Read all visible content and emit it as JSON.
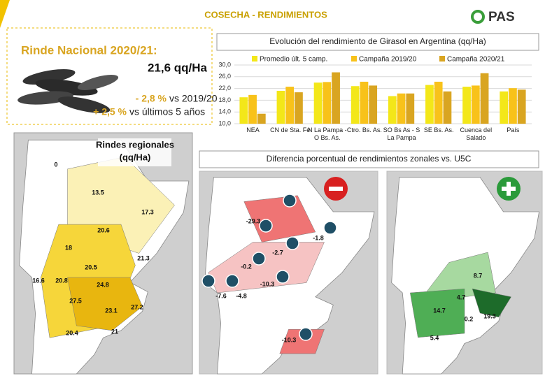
{
  "header": {
    "title": "COSECHA - RENDIMIENTOS",
    "logo": "PAS"
  },
  "national": {
    "title": "Rinde Nacional 2020/21:",
    "value": "21,6 qq/Ha",
    "changes": [
      {
        "change": "- 2,8 %",
        "text": "vs 2019/20"
      },
      {
        "change": "+ 2,5 %",
        "text": "vs últimos 5 años"
      }
    ]
  },
  "chart_data": {
    "type": "bar",
    "title": "Evolución del rendimiento de Girasol en Argentina (qq/Ha)",
    "categories": [
      "NEA",
      "CN de Sta. Fe",
      "N La Pampa - O Bs. As.",
      "Ctro. Bs. As.",
      "SO Bs As - S La Pampa",
      "SE Bs. As.",
      "Cuenca del Salado",
      "País"
    ],
    "series": [
      {
        "name": "Promedio últ. 5 camp.",
        "color": "#f3e719",
        "values": [
          19.0,
          21.2,
          24.0,
          22.8,
          19.4,
          23.2,
          22.6,
          21.0
        ]
      },
      {
        "name": "Campaña 2019/20",
        "color": "#f8c21a",
        "values": [
          19.8,
          22.6,
          24.2,
          24.3,
          20.3,
          24.3,
          23.0,
          22.1
        ]
      },
      {
        "name": "Campaña 2020/21",
        "color": "#d9a521",
        "values": [
          13.4,
          20.7,
          27.5,
          23.0,
          20.3,
          21.0,
          27.2,
          21.6
        ]
      }
    ],
    "ylim": [
      10,
      30
    ],
    "yticks": [
      {
        "value": 10,
        "label": "10,0"
      },
      {
        "value": 14,
        "label": "14,0"
      },
      {
        "value": 18,
        "label": "18,0"
      },
      {
        "value": 22,
        "label": "22,0"
      },
      {
        "value": 26,
        "label": "26,0"
      },
      {
        "value": 30,
        "label": "30,0"
      }
    ],
    "grid": true
  },
  "regional_map": {
    "title": "Rindes regionales",
    "unit": "(qq/Ha)",
    "labels": [
      0,
      13.5,
      17.3,
      20.6,
      18,
      21.3,
      20.5,
      16.6,
      20.8,
      24.8,
      27.5,
      23.1,
      27.2,
      20.4,
      21
    ]
  },
  "difference": {
    "title": "Diferencia porcentual de rendimientos zonales vs. U5C",
    "negative_labels": [
      -29.3,
      -1.8,
      -2.7,
      -0.2,
      -10.3,
      -7.6,
      -4.8,
      -10.3
    ],
    "positive_labels": [
      8.7,
      4.7,
      14.7,
      0.2,
      19.3,
      5.4
    ]
  }
}
